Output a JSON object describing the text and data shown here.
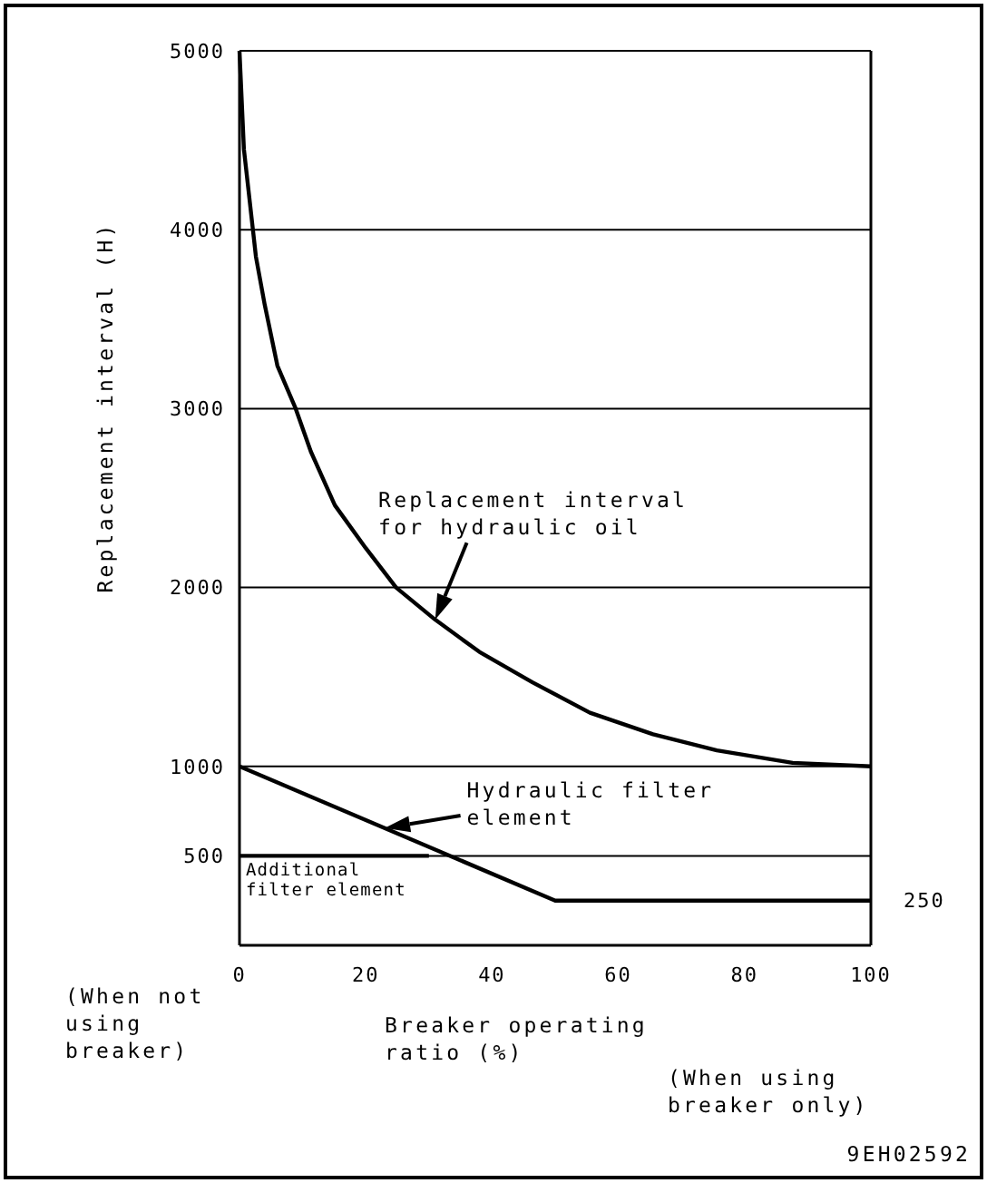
{
  "chart_data": {
    "type": "line",
    "xlabel": "Breaker operating ratio (%)",
    "ylabel": "Replacement interval (H)",
    "xlim": [
      0,
      100
    ],
    "xticks": [
      0,
      20,
      40,
      60,
      80,
      100
    ],
    "ylim": [
      0,
      5000
    ],
    "yticks": [
      500,
      1000,
      2000,
      3000,
      4000,
      5000
    ],
    "grid": "y",
    "marker": "none",
    "line_style": "solid",
    "series": [
      {
        "name": "Replacement interval for hydraulic oil",
        "color": "#000000",
        "x": [
          0,
          0.7,
          2.6,
          4,
          6,
          8.9,
          11.3,
          15.1,
          20,
          24.8,
          31,
          38,
          46.4,
          55.5,
          65.5,
          75.6,
          87.6,
          100
        ],
        "values": [
          5000,
          4450,
          3850,
          3580,
          3240,
          3000,
          2760,
          2460,
          2220,
          2000,
          1820,
          1640,
          1470,
          1300,
          1180,
          1090,
          1020,
          1000
        ]
      },
      {
        "name": "Hydraulic filter element",
        "color": "#000000",
        "x": [
          0,
          50,
          100
        ],
        "values": [
          1000,
          250,
          250
        ]
      },
      {
        "name": "Additional filter element",
        "color": "#000000",
        "x": [
          0,
          30
        ],
        "values": [
          500,
          500
        ]
      }
    ],
    "annotations": [
      "(When not using breaker)",
      "(When using breaker only)",
      {
        "text": "250",
        "x": 100,
        "y": 250
      },
      "9EH02592"
    ]
  }
}
